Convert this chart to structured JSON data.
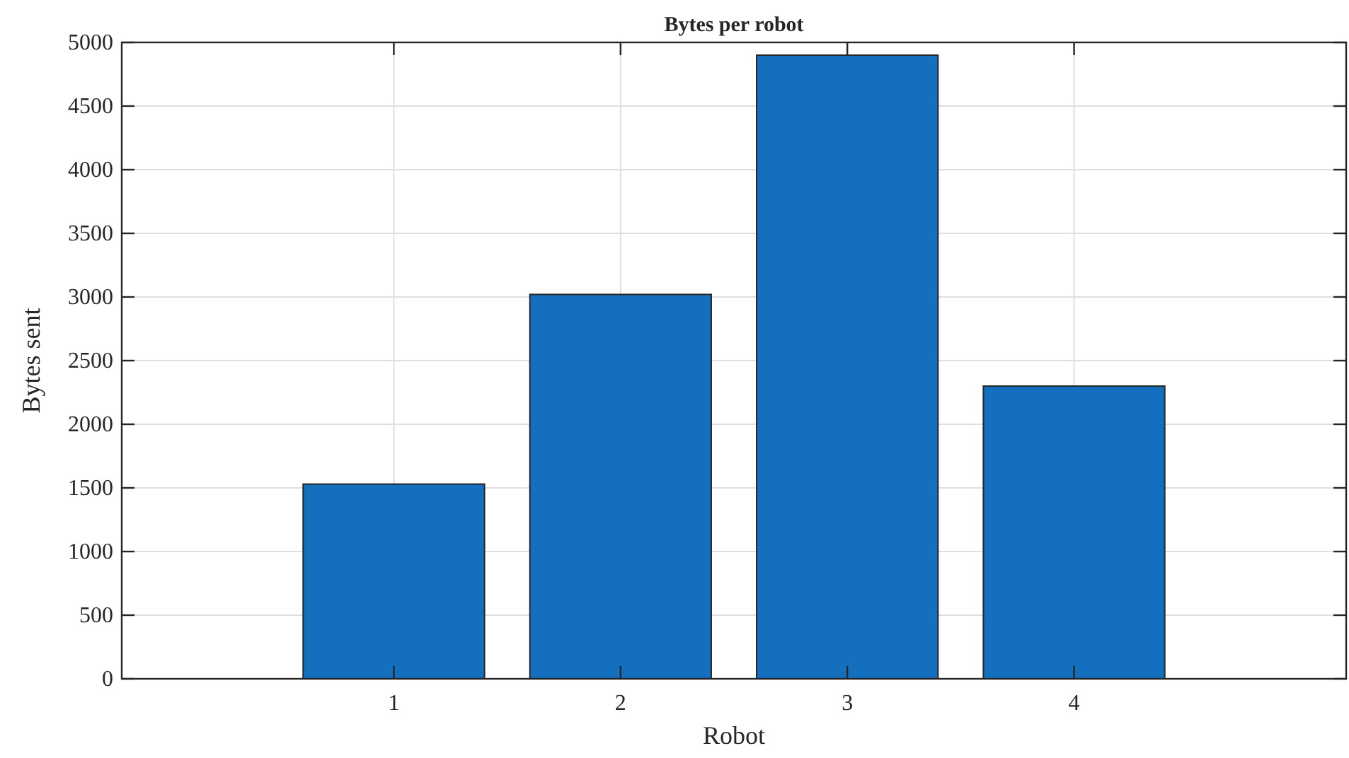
{
  "chart_data": {
    "type": "bar",
    "title": "Bytes per robot",
    "xlabel": "Robot",
    "ylabel": "Bytes sent",
    "x": [
      1,
      2,
      3,
      4
    ],
    "values": [
      1530,
      3020,
      4900,
      2300
    ],
    "color": "#1470be",
    "xlim": [
      -0.2,
      5.2
    ],
    "xticks": [
      1,
      2,
      3,
      4
    ],
    "ylim": [
      0,
      5000
    ],
    "yticks": [
      0,
      500,
      1000,
      1500,
      2000,
      2500,
      3000,
      3500,
      4000,
      4500,
      5000
    ],
    "grid": true
  }
}
